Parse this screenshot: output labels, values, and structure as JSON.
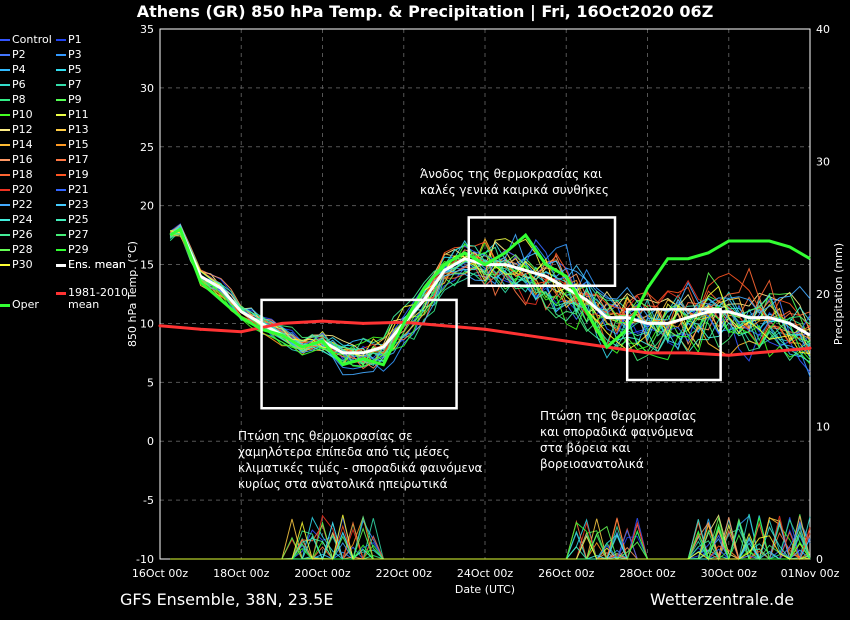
{
  "title": "Athens  (GR)  850 hPa Temp. & Precipitation | Fri, 16Oct2020 06Z",
  "footer_left": "GFS Ensemble, 38N, 23.5E",
  "footer_right": "Wetterzentrale.de",
  "annotations": [
    {
      "lines": [
        "Άνοδος της θερμοκρασίας και",
        "καλές γενικά καιρικά συνθήκες"
      ]
    },
    {
      "lines": [
        "Πτώση της θερμοκρασίας σε",
        "χαμηλότερα επίπεδα από τις μέσες",
        "κλιματικές τιμές - σποραδικά φαινόμενα",
        "κυρίως στα ανατολικά ηπειρωτικά"
      ]
    },
    {
      "lines": [
        "Πτώση της θερμοκρασίας",
        "και σποραδικά φαινόμενα",
        "στα βόρεια και",
        "βορειοανατολικά"
      ]
    }
  ],
  "legend": [
    {
      "label": "Control",
      "color": "#3355ff"
    },
    {
      "label": "P1",
      "color": "#2244ee"
    },
    {
      "label": "P2",
      "color": "#4477ff"
    },
    {
      "label": "P3",
      "color": "#3399ff"
    },
    {
      "label": "P4",
      "color": "#33bbff"
    },
    {
      "label": "P5",
      "color": "#33ddee"
    },
    {
      "label": "P6",
      "color": "#33ddcc"
    },
    {
      "label": "P7",
      "color": "#33ddaa"
    },
    {
      "label": "P8",
      "color": "#33ee88"
    },
    {
      "label": "P9",
      "color": "#55ff55"
    },
    {
      "label": "P10",
      "color": "#44ff22"
    },
    {
      "label": "P11",
      "color": "#eeff44"
    },
    {
      "label": "P12",
      "color": "#ffee88"
    },
    {
      "label": "P13",
      "color": "#ffcc44"
    },
    {
      "label": "P14",
      "color": "#ffbb33"
    },
    {
      "label": "P15",
      "color": "#ff9922"
    },
    {
      "label": "P16",
      "color": "#ff9966"
    },
    {
      "label": "P17",
      "color": "#ff7744"
    },
    {
      "label": "P18",
      "color": "#ff6633"
    },
    {
      "label": "P19",
      "color": "#ff5522"
    },
    {
      "label": "P20",
      "color": "#ee3322"
    },
    {
      "label": "P21",
      "color": "#3366ff"
    },
    {
      "label": "P22",
      "color": "#44aaff"
    },
    {
      "label": "P23",
      "color": "#44ccff"
    },
    {
      "label": "P24",
      "color": "#44eedd"
    },
    {
      "label": "P25",
      "color": "#44eebb"
    },
    {
      "label": "P26",
      "color": "#44ee99"
    },
    {
      "label": "P27",
      "color": "#44ee77"
    },
    {
      "label": "P28",
      "color": "#66ff55"
    },
    {
      "label": "P29",
      "color": "#33ff33"
    },
    {
      "label": "P30",
      "color": "#ffff33"
    },
    {
      "label": "Ens. mean",
      "color": "#ffffff"
    },
    {
      "label": "1981-2010",
      "label2": "mean",
      "color": "#ff3333"
    },
    {
      "label": "Oper",
      "color": "#33ff33"
    }
  ],
  "chart_data": {
    "type": "line",
    "xlabel": "Date (UTC)",
    "ylabel": "850 hPa Temp. (°C)",
    "y2label": "Precipitation (mm)",
    "xlim_days": [
      0,
      16
    ],
    "ylim": [
      -10,
      35
    ],
    "y2lim": [
      0,
      40
    ],
    "yticks": [
      -10,
      -5,
      0,
      5,
      10,
      15,
      20,
      25,
      30,
      35
    ],
    "y2ticks": [
      0,
      10,
      20,
      30,
      40
    ],
    "xticks": [
      "16Oct 00z",
      "18Oct 00z",
      "20Oct 00z",
      "22Oct 00z",
      "24Oct 00z",
      "26Oct 00z",
      "28Oct 00z",
      "30Oct 00z",
      "01Nov 00z"
    ],
    "grid": true,
    "series": [
      {
        "name": "Ens. mean",
        "color": "#ffffff",
        "x": [
          0.25,
          0.5,
          1,
          1.5,
          2,
          2.5,
          3,
          3.5,
          4,
          4.5,
          5,
          5.5,
          6,
          6.5,
          7,
          7.5,
          8,
          8.5,
          9,
          9.5,
          10,
          10.5,
          11,
          11.5,
          12,
          12.5,
          13,
          13.5,
          14,
          14.5,
          15,
          15.5,
          16
        ],
        "y": [
          17.5,
          18,
          14,
          13,
          11,
          10,
          9,
          8,
          8.5,
          7.5,
          7.5,
          8,
          10,
          12,
          14.5,
          15.5,
          15,
          15,
          14.5,
          14,
          13,
          12,
          10.5,
          10.5,
          10,
          10,
          10.5,
          11,
          11,
          10.5,
          10.5,
          10,
          9
        ]
      },
      {
        "name": "1981-2010 mean",
        "color": "#ff3333",
        "x": [
          0,
          1,
          2,
          3,
          4,
          5,
          6,
          7,
          8,
          9,
          10,
          11,
          12,
          13,
          14,
          15,
          16
        ],
        "y": [
          9.8,
          9.5,
          9.3,
          10,
          10.2,
          10,
          10.1,
          9.8,
          9.5,
          9,
          8.5,
          8,
          7.5,
          7.5,
          7.3,
          7.6,
          7.9
        ]
      },
      {
        "name": "Oper",
        "color": "#33ff33",
        "x": [
          0.25,
          0.5,
          1,
          1.5,
          2,
          2.5,
          3,
          3.5,
          4,
          4.5,
          5,
          5.5,
          6,
          6.5,
          7,
          7.5,
          8,
          8.5,
          9,
          9.5,
          10,
          10.5,
          11,
          11.5,
          12,
          12.5,
          13,
          13.5,
          14,
          14.5,
          15,
          15.5,
          16
        ],
        "y": [
          17.5,
          18,
          13.5,
          12,
          10.5,
          9.5,
          9,
          8,
          8.5,
          6.5,
          7,
          6.5,
          10,
          13,
          15,
          16,
          15,
          16,
          17.5,
          15,
          14,
          11,
          8,
          9.5,
          13,
          15.5,
          15.5,
          16,
          17,
          17,
          17,
          16.5,
          15.5
        ]
      }
    ],
    "boxes": [
      {
        "x": [
          2.5,
          7.3
        ],
        "y": [
          2.8,
          12
        ]
      },
      {
        "x": [
          7.6,
          11.2
        ],
        "y": [
          13.2,
          19
        ]
      },
      {
        "x": [
          11.5,
          13.8
        ],
        "y": [
          5.2,
          11.2
        ]
      }
    ]
  }
}
